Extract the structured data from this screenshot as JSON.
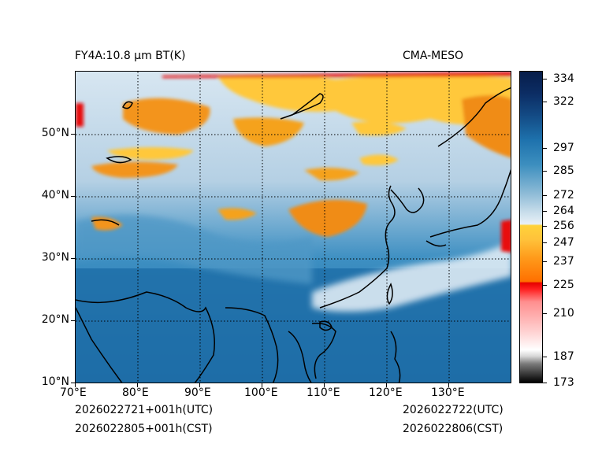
{
  "title_left": "FY4A:10.8 µm BT(K)",
  "title_right": "CMA-MESO",
  "x_ticks": [
    "70°E",
    "80°E",
    "90°E",
    "100°E",
    "110°E",
    "120°E",
    "130°E"
  ],
  "y_ticks": [
    "10°N",
    "20°N",
    "30°N",
    "40°N",
    "50°N"
  ],
  "colorbar_ticks": [
    "173",
    "187",
    "210",
    "225",
    "237",
    "247",
    "256",
    "264",
    "272",
    "285",
    "297",
    "322",
    "334"
  ],
  "footer": {
    "left_utc": "2026022721+001h(UTC)",
    "left_cst": "2026022805+001h(CST)",
    "right_utc": "2026022722(UTC)",
    "right_cst": "2026022806(CST)"
  },
  "colors": {
    "ocean_blue": "#1f6fa8",
    "land_light": "#b8d2e3",
    "cloud_orange": "#f5a21c",
    "cloud_yellow": "#ffc83a",
    "cold_red": "#e81010"
  }
}
